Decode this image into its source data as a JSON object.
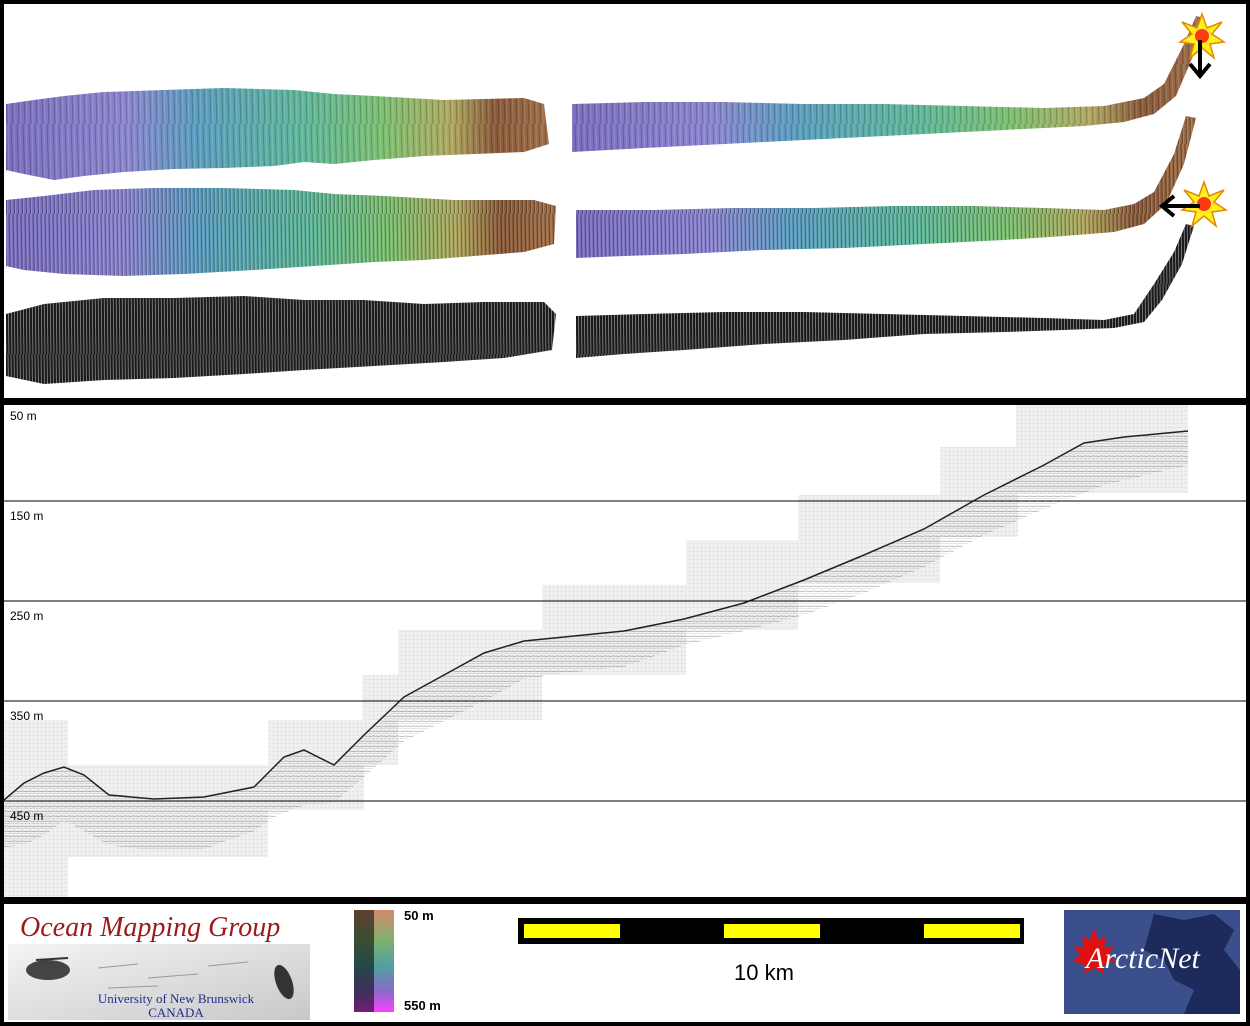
{
  "profile": {
    "depth_labels": [
      "50 m",
      "150 m",
      "250 m",
      "350 m",
      "450 m"
    ]
  },
  "legend": {
    "top_label": "50 m",
    "bottom_label": "550 m"
  },
  "scale_bar": {
    "label": "10 km"
  },
  "logos": {
    "omg_title": "Ocean Mapping Group",
    "omg_line1": "University of New Brunswick",
    "omg_line2": "CANADA",
    "arcticnet": "ArcticNet"
  },
  "icons": {
    "marker": "sun-burst-icon",
    "arrows": [
      "arrow-down-icon",
      "arrow-left-icon"
    ]
  },
  "colors": {
    "shallow": "#8a5a3a",
    "mid": "#5fb89a",
    "deep": "#7b6fc0",
    "scale_yellow": "#ffff00"
  }
}
